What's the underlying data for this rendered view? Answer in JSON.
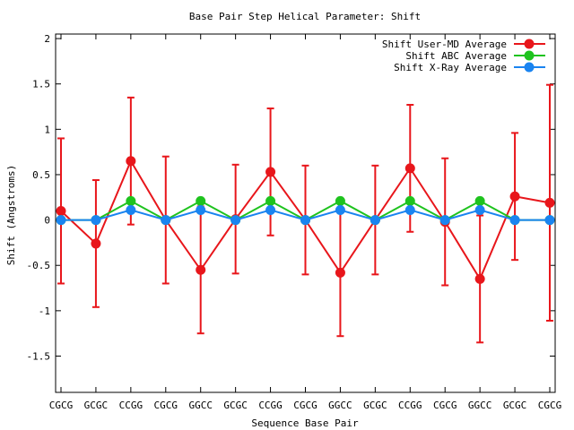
{
  "chart_data": {
    "type": "line",
    "title": "Base Pair Step Helical Parameter: Shift",
    "xlabel": "Sequence Base Pair",
    "ylabel": "Shift (Angstroms)",
    "categories": [
      "CGCG",
      "GCGC",
      "CCGG",
      "CGCG",
      "GGCC",
      "GCGC",
      "CCGG",
      "CGCG",
      "GGCC",
      "GCGC",
      "CCGG",
      "CGCG",
      "GGCC",
      "GCGC",
      "CGCG"
    ],
    "ylim": [
      -1.9,
      2.05
    ],
    "yticks": [
      {
        "value": 2,
        "label": "2"
      },
      {
        "value": 1.5,
        "label": "1.5"
      },
      {
        "value": 1,
        "label": "1"
      },
      {
        "value": 0.5,
        "label": "0.5"
      },
      {
        "value": 0,
        "label": "0"
      },
      {
        "value": -0.5,
        "label": "-0.5"
      },
      {
        "value": -1,
        "label": "-1"
      },
      {
        "value": -1.5,
        "label": "-1.5"
      }
    ],
    "grid": false,
    "legend_position": "top-right",
    "series": [
      {
        "name": "Shift User-MD Average",
        "color": "#e8161b",
        "values": [
          0.1,
          -0.26,
          0.65,
          0,
          -0.55,
          0.01,
          0.53,
          0,
          -0.58,
          0,
          0.57,
          -0.02,
          -0.65,
          0.26,
          0.19
        ],
        "error": [
          0.8,
          0.7,
          0.7,
          0.7,
          0.7,
          0.6,
          0.7,
          0.6,
          0.7,
          0.6,
          0.7,
          0.7,
          0.7,
          0.7,
          1.3
        ]
      },
      {
        "name": "Shift ABC Average",
        "color": "#1ec31e",
        "values": [
          0,
          0,
          0.21,
          0,
          0.21,
          0,
          0.21,
          0,
          0.21,
          0,
          0.21,
          0,
          0.21,
          0,
          0
        ]
      },
      {
        "name": "Shift X-Ray Average",
        "color": "#1a84f0",
        "values": [
          0,
          0,
          0.11,
          0,
          0.11,
          0,
          0.11,
          0,
          0.11,
          0,
          0.11,
          0,
          0.11,
          0,
          0
        ]
      }
    ]
  }
}
